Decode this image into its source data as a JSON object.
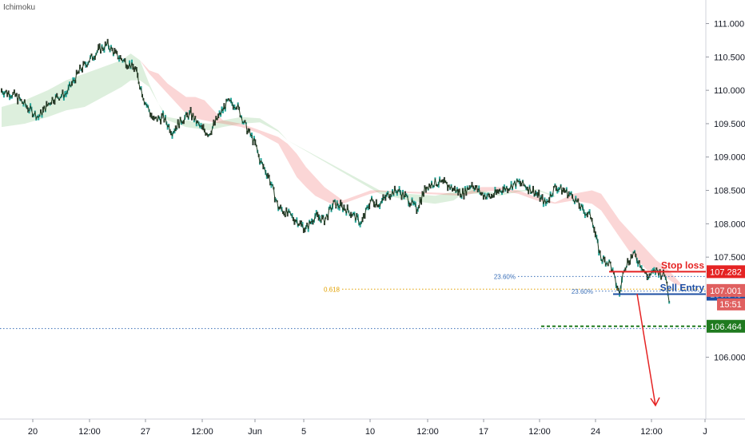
{
  "indicator": {
    "label": "Ichimoku"
  },
  "chart_data": {
    "type": "line",
    "ylim": [
      105.6,
      111.15
    ],
    "y_ticks": [
      "111.000",
      "110.500",
      "110.000",
      "109.500",
      "109.000",
      "108.500",
      "108.000",
      "107.500",
      "106.000"
    ],
    "x_ticks": [
      "20",
      "12:00",
      "27",
      "12:00",
      "Jun",
      "5",
      "10",
      "12:00",
      "17",
      "12:00",
      "24",
      "12:00",
      "J"
    ],
    "price_path": [
      [
        0,
        110.0
      ],
      [
        3,
        109.92
      ],
      [
        6,
        109.72
      ],
      [
        8,
        109.6
      ],
      [
        11,
        109.87
      ],
      [
        14,
        109.95
      ],
      [
        17,
        110.3
      ],
      [
        19,
        110.45
      ],
      [
        21,
        110.6
      ],
      [
        23,
        110.68
      ],
      [
        25,
        110.52
      ],
      [
        27,
        110.42
      ],
      [
        29,
        110.32
      ],
      [
        31,
        109.85
      ],
      [
        33,
        109.55
      ],
      [
        35,
        109.6
      ],
      [
        37,
        109.38
      ],
      [
        39,
        109.55
      ],
      [
        41,
        109.65
      ],
      [
        43,
        109.45
      ],
      [
        45,
        109.35
      ],
      [
        47,
        109.6
      ],
      [
        49,
        109.82
      ],
      [
        51,
        109.78
      ],
      [
        53,
        109.45
      ],
      [
        55,
        109.2
      ],
      [
        56,
        108.95
      ],
      [
        58,
        108.7
      ],
      [
        60,
        108.25
      ],
      [
        62,
        108.15
      ],
      [
        64,
        108.05
      ],
      [
        66,
        107.92
      ],
      [
        68,
        108.12
      ],
      [
        70,
        108.05
      ],
      [
        72,
        108.3
      ],
      [
        74,
        108.25
      ],
      [
        76,
        108.15
      ],
      [
        78,
        108.0
      ],
      [
        80,
        108.35
      ],
      [
        82,
        108.3
      ],
      [
        84,
        108.45
      ],
      [
        86,
        108.5
      ],
      [
        88,
        108.38
      ],
      [
        90,
        108.22
      ],
      [
        92,
        108.55
      ],
      [
        94,
        108.62
      ],
      [
        96,
        108.6
      ],
      [
        98,
        108.52
      ],
      [
        100,
        108.45
      ],
      [
        102,
        108.6
      ],
      [
        104,
        108.45
      ],
      [
        106,
        108.4
      ],
      [
        108,
        108.5
      ],
      [
        110,
        108.55
      ],
      [
        112,
        108.62
      ],
      [
        114,
        108.55
      ],
      [
        116,
        108.45
      ],
      [
        118,
        108.3
      ],
      [
        120,
        108.55
      ],
      [
        122,
        108.5
      ],
      [
        124,
        108.4
      ],
      [
        126,
        108.2
      ],
      [
        128,
        108.1
      ],
      [
        129,
        107.75
      ],
      [
        130,
        107.48
      ],
      [
        132,
        107.4
      ],
      [
        133,
        107.15
      ],
      [
        134,
        106.95
      ],
      [
        135,
        107.35
      ],
      [
        137,
        107.55
      ],
      [
        139,
        107.35
      ],
      [
        140,
        107.2
      ],
      [
        142,
        107.3
      ],
      [
        143,
        107.25
      ],
      [
        144,
        107.22
      ],
      [
        145,
        106.75
      ]
    ],
    "cloud_green_top": [
      [
        0,
        109.75
      ],
      [
        5,
        109.85
      ],
      [
        10,
        110.0
      ],
      [
        14,
        110.15
      ],
      [
        18,
        110.25
      ],
      [
        22,
        110.35
      ],
      [
        26,
        110.45
      ],
      [
        28,
        110.55
      ],
      [
        30,
        110.45
      ],
      [
        32,
        110.1
      ],
      [
        34,
        109.8
      ],
      [
        36,
        109.6
      ],
      [
        40,
        109.55
      ],
      [
        45,
        109.5
      ],
      [
        48,
        109.55
      ],
      [
        52,
        109.6
      ],
      [
        56,
        109.58
      ],
      [
        60,
        109.4
      ],
      [
        62,
        109.25
      ],
      [
        82,
        108.5
      ],
      [
        88,
        108.45
      ],
      [
        94,
        108.42
      ],
      [
        98,
        108.48
      ],
      [
        100,
        108.55
      ],
      [
        104,
        108.5
      ],
      [
        108,
        108.45
      ],
      [
        112,
        108.5
      ],
      [
        116,
        108.52
      ],
      [
        120,
        108.42
      ]
    ],
    "cloud_green_bottom": [
      [
        0,
        109.45
      ],
      [
        5,
        109.5
      ],
      [
        10,
        109.6
      ],
      [
        14,
        109.7
      ],
      [
        18,
        109.75
      ],
      [
        22,
        109.9
      ],
      [
        26,
        110.05
      ],
      [
        28,
        110.15
      ],
      [
        30,
        110.15
      ],
      [
        32,
        110.05
      ],
      [
        34,
        109.8
      ],
      [
        36,
        109.55
      ],
      [
        40,
        109.45
      ],
      [
        45,
        109.4
      ],
      [
        48,
        109.45
      ],
      [
        52,
        109.5
      ],
      [
        56,
        109.52
      ],
      [
        60,
        109.38
      ],
      [
        62,
        109.25
      ],
      [
        82,
        108.45
      ],
      [
        88,
        108.35
      ],
      [
        94,
        108.3
      ],
      [
        98,
        108.35
      ],
      [
        100,
        108.45
      ],
      [
        104,
        108.45
      ],
      [
        108,
        108.42
      ],
      [
        112,
        108.48
      ],
      [
        116,
        108.5
      ],
      [
        120,
        108.4
      ]
    ],
    "cloud_red_top": [
      [
        30,
        110.45
      ],
      [
        32,
        110.3
      ],
      [
        34,
        110.25
      ],
      [
        36,
        110.1
      ],
      [
        38,
        110.0
      ],
      [
        40,
        109.9
      ],
      [
        42,
        109.9
      ],
      [
        44,
        109.85
      ],
      [
        46,
        109.7
      ],
      [
        48,
        109.55
      ],
      [
        52,
        109.5
      ],
      [
        56,
        109.4
      ],
      [
        60,
        109.3
      ],
      [
        62,
        109.2
      ],
      [
        64,
        109.05
      ],
      [
        66,
        108.85
      ],
      [
        68,
        108.7
      ],
      [
        70,
        108.55
      ],
      [
        72,
        108.45
      ],
      [
        74,
        108.35
      ],
      [
        76,
        108.4
      ],
      [
        78,
        108.45
      ],
      [
        80,
        108.5
      ],
      [
        82,
        108.5
      ],
      [
        100,
        108.45
      ],
      [
        104,
        108.55
      ],
      [
        108,
        108.55
      ],
      [
        112,
        108.5
      ],
      [
        116,
        108.4
      ],
      [
        120,
        108.32
      ],
      [
        124,
        108.45
      ],
      [
        128,
        108.5
      ],
      [
        130,
        108.45
      ],
      [
        132,
        108.25
      ],
      [
        134,
        108.05
      ],
      [
        136,
        107.9
      ],
      [
        138,
        107.75
      ],
      [
        140,
        107.6
      ],
      [
        142,
        107.45
      ],
      [
        144,
        107.35
      ],
      [
        146,
        107.2
      ],
      [
        148,
        107.05
      ]
    ],
    "cloud_red_bottom": [
      [
        30,
        110.45
      ],
      [
        32,
        110.25
      ],
      [
        34,
        110.1
      ],
      [
        36,
        109.95
      ],
      [
        38,
        109.8
      ],
      [
        40,
        109.65
      ],
      [
        42,
        109.58
      ],
      [
        44,
        109.55
      ],
      [
        46,
        109.52
      ],
      [
        48,
        109.5
      ],
      [
        52,
        109.45
      ],
      [
        56,
        109.35
      ],
      [
        60,
        109.2
      ],
      [
        62,
        108.95
      ],
      [
        64,
        108.7
      ],
      [
        66,
        108.55
      ],
      [
        68,
        108.42
      ],
      [
        70,
        108.35
      ],
      [
        72,
        108.28
      ],
      [
        74,
        108.3
      ],
      [
        76,
        108.35
      ],
      [
        78,
        108.4
      ],
      [
        80,
        108.45
      ],
      [
        82,
        108.48
      ],
      [
        100,
        108.42
      ],
      [
        104,
        108.48
      ],
      [
        108,
        108.5
      ],
      [
        112,
        108.45
      ],
      [
        116,
        108.35
      ],
      [
        120,
        108.3
      ],
      [
        124,
        108.35
      ],
      [
        128,
        108.3
      ],
      [
        130,
        108.2
      ],
      [
        132,
        108.0
      ],
      [
        134,
        107.8
      ],
      [
        136,
        107.6
      ],
      [
        138,
        107.45
      ],
      [
        140,
        107.3
      ],
      [
        142,
        107.25
      ],
      [
        144,
        107.2
      ],
      [
        146,
        107.1
      ],
      [
        148,
        107.05
      ]
    ],
    "levels": [
      {
        "name": "Stop loss",
        "value": 107.282,
        "label": "107.282",
        "color": "#e52323",
        "style": "solid"
      },
      {
        "name": "Sell Entry",
        "value": 106.945,
        "label": "106.945",
        "color": "#1e4fa3",
        "style": "solid"
      },
      {
        "name": "",
        "value": 106.464,
        "label": "106.464",
        "color": "#1f7a1f",
        "style": "dashed"
      }
    ],
    "current_price": {
      "value": 107.001,
      "label": "107.001",
      "color": "#e06060"
    },
    "countdown": {
      "label": "15:51",
      "color": "#e06060"
    },
    "fib_lines": [
      {
        "label": "23.60%",
        "value": 107.21,
        "color": "#3a6fb8"
      },
      {
        "label": "0.618",
        "value": 107.02,
        "color": "#e2a100"
      },
      {
        "label": "23.60%",
        "value": 106.99,
        "color": "#3a6fb8"
      }
    ],
    "reference_line": {
      "value": 106.43,
      "color": "#3a6fb8"
    },
    "projection_arrow": {
      "from": [
        146,
        106.95
      ],
      "to": [
        150,
        105.7
      ],
      "color": "#e52323"
    }
  }
}
